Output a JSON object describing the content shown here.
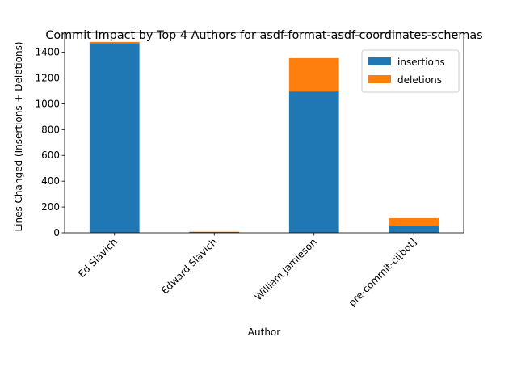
{
  "chart_data": {
    "type": "bar",
    "stacked": true,
    "title": "Commit Impact by Top 4 Authors for asdf-format-asdf-coordinates-schemas",
    "xlabel": "Author",
    "ylabel": "Lines Changed (Insertions + Deletions)",
    "categories": [
      "Ed Slavich",
      "Edward Slavich",
      "William Jamieson",
      "pre-commit-ci[bot]"
    ],
    "series": [
      {
        "name": "insertions",
        "color": "#1f77b4",
        "values": [
          1470,
          7,
          1096,
          55
        ]
      },
      {
        "name": "deletions",
        "color": "#ff7f0e",
        "values": [
          10,
          2,
          258,
          58
        ]
      }
    ],
    "yticks": [
      0,
      200,
      400,
      600,
      800,
      1000,
      1200,
      1400
    ],
    "ylim": [
      0,
      1554
    ],
    "legend_position": "top-right",
    "grid": false
  }
}
